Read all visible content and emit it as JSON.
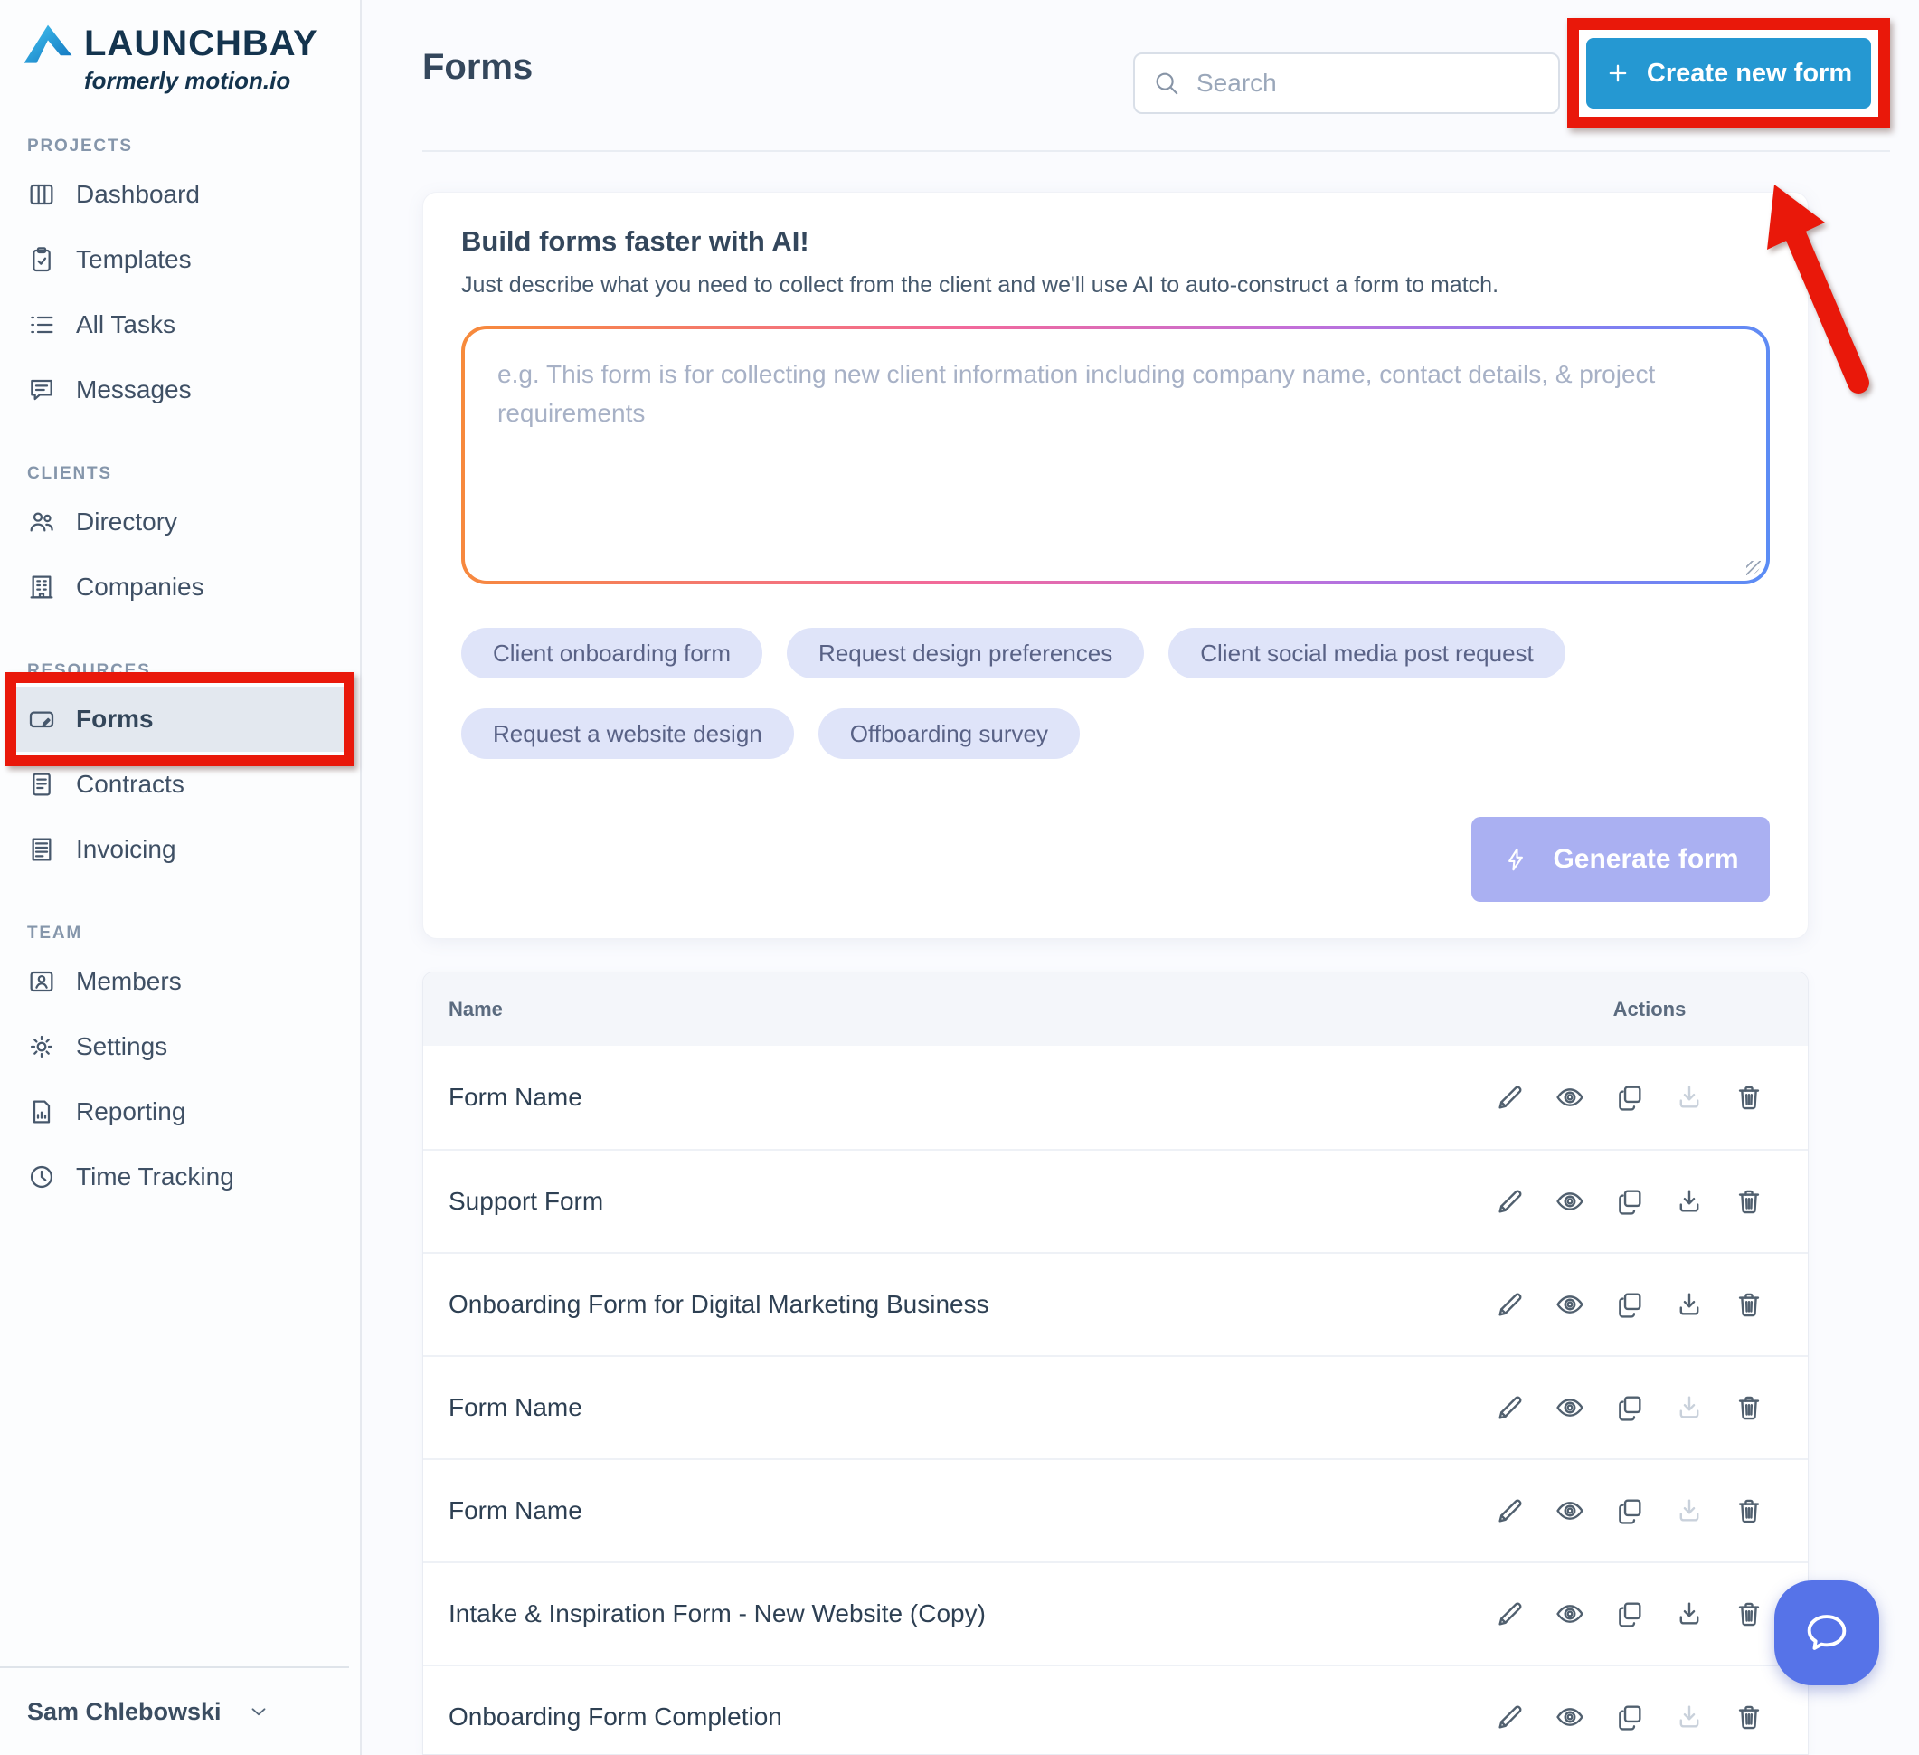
{
  "app": {
    "brand": "LAUNCHBAY",
    "tagline": "formerly motion.io"
  },
  "sidebar": {
    "sections": [
      {
        "label": "PROJECTS",
        "items": [
          {
            "label": "Dashboard",
            "icon": "dashboard-icon"
          },
          {
            "label": "Templates",
            "icon": "templates-icon"
          },
          {
            "label": "All Tasks",
            "icon": "all-tasks-icon"
          },
          {
            "label": "Messages",
            "icon": "messages-icon"
          }
        ]
      },
      {
        "label": "CLIENTS",
        "items": [
          {
            "label": "Directory",
            "icon": "directory-icon"
          },
          {
            "label": "Companies",
            "icon": "companies-icon"
          }
        ]
      },
      {
        "label": "RESOURCES",
        "items": [
          {
            "label": "Forms",
            "icon": "forms-icon",
            "selected": true,
            "annotated": true
          },
          {
            "label": "Contracts",
            "icon": "contracts-icon"
          },
          {
            "label": "Invoicing",
            "icon": "invoicing-icon"
          }
        ]
      },
      {
        "label": "TEAM",
        "items": [
          {
            "label": "Members",
            "icon": "members-icon"
          },
          {
            "label": "Settings",
            "icon": "settings-icon"
          },
          {
            "label": "Reporting",
            "icon": "reporting-icon"
          },
          {
            "label": "Time Tracking",
            "icon": "time-tracking-icon"
          }
        ]
      }
    ],
    "user": {
      "name": "Sam Chlebowski"
    }
  },
  "header": {
    "title": "Forms",
    "search_placeholder": "Search",
    "create_button": "Create new form"
  },
  "ai_card": {
    "title": "Build forms faster with AI!",
    "description": "Just describe what you need to collect from the client and we'll use AI to auto-construct a form to match.",
    "textarea_placeholder": "e.g. This form is for collecting new client information including company name, contact details, & project requirements",
    "suggestions": [
      "Client onboarding form",
      "Request design preferences",
      "Client social media post request",
      "Request a website design",
      "Offboarding survey"
    ],
    "generate_button": "Generate form"
  },
  "table": {
    "columns": {
      "name": "Name",
      "actions": "Actions"
    },
    "actions": [
      "edit",
      "preview",
      "duplicate",
      "download",
      "delete"
    ],
    "rows": [
      {
        "name": "Form Name",
        "download_enabled": false
      },
      {
        "name": "Support Form",
        "download_enabled": true
      },
      {
        "name": "Onboarding Form for Digital Marketing Business",
        "download_enabled": true
      },
      {
        "name": "Form Name",
        "download_enabled": false
      },
      {
        "name": "Form Name",
        "download_enabled": false
      },
      {
        "name": "Intake & Inspiration Form - New Website (Copy)",
        "download_enabled": true
      },
      {
        "name": "Onboarding Form Completion",
        "download_enabled": false
      }
    ]
  },
  "colors": {
    "primary_blue": "#2598d2",
    "annotation_red": "#e9180a",
    "chip_bg": "#dfe4f9",
    "generate_bg": "#aab0f2",
    "chat_bubble": "#5673e8",
    "textarea_gradient": [
      "#f78a3a",
      "#f2699b",
      "#c46fd8",
      "#5a8df5"
    ]
  }
}
